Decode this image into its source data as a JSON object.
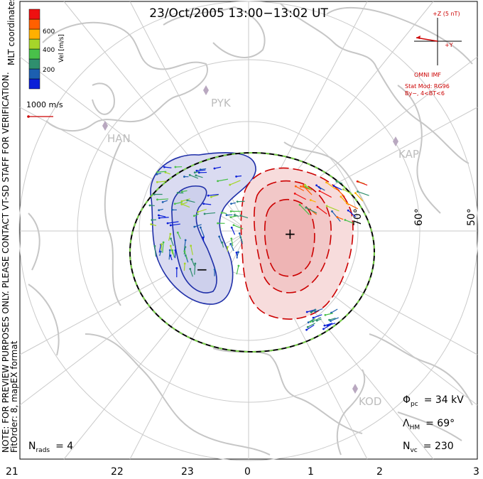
{
  "title": "23/Oct/2005 13:00−13:02 UT",
  "colorbar": {
    "label": "Vel [m/s]",
    "ticks": [
      "600",
      "400",
      "200"
    ],
    "colors": [
      "#0a1fd8",
      "#1c5fb0",
      "#2f8f6e",
      "#49c04a",
      "#a6d52a",
      "#ffb000",
      "#ff6000",
      "#ee1010"
    ]
  },
  "coordinate_label": "MLT coordinates",
  "scale_label": "1000 m/s",
  "note_line1": "NOTE: FOR PREVIEW PURPOSES ONLY. PLEASE CONTACT VT-SD STAFF FOR VERIFICATION.",
  "note_line2": "FitOrder: 8, mapEX format",
  "imf": {
    "z_label": "+Z (5 nT)",
    "y_label": "+Y",
    "source": "OMNI IMF",
    "model_line1": "Stat Mod: RG96",
    "model_line2": "By−, 4<BT<6"
  },
  "latitude_labels": [
    "70°",
    "60°",
    "50°"
  ],
  "sites": [
    "PYK",
    "HAN",
    "KAP",
    "KOD"
  ],
  "stats": {
    "phi_sym": "Φ",
    "phi_sub": "pc",
    "phi_val": "= 34 kV",
    "lambda_sym": "Λ",
    "lambda_sub": "HM",
    "lambda_val": "= 69°",
    "n_sym": "N",
    "n_sub": "vc",
    "n_val": "= 230",
    "rads_sym": "N",
    "rads_sub": "rads",
    "rads_val": "= 4"
  },
  "mlt_ticks": [
    "21",
    "22",
    "23",
    "0",
    "1",
    "2",
    "3"
  ],
  "convection": {
    "positive_marker": "+",
    "negative_marker": "−"
  },
  "colors": {
    "positive_cell": "#cc0000",
    "negative_cell": "#1f2fa8",
    "land": "#c4c4c4",
    "grid": "#c8c8c8"
  }
}
